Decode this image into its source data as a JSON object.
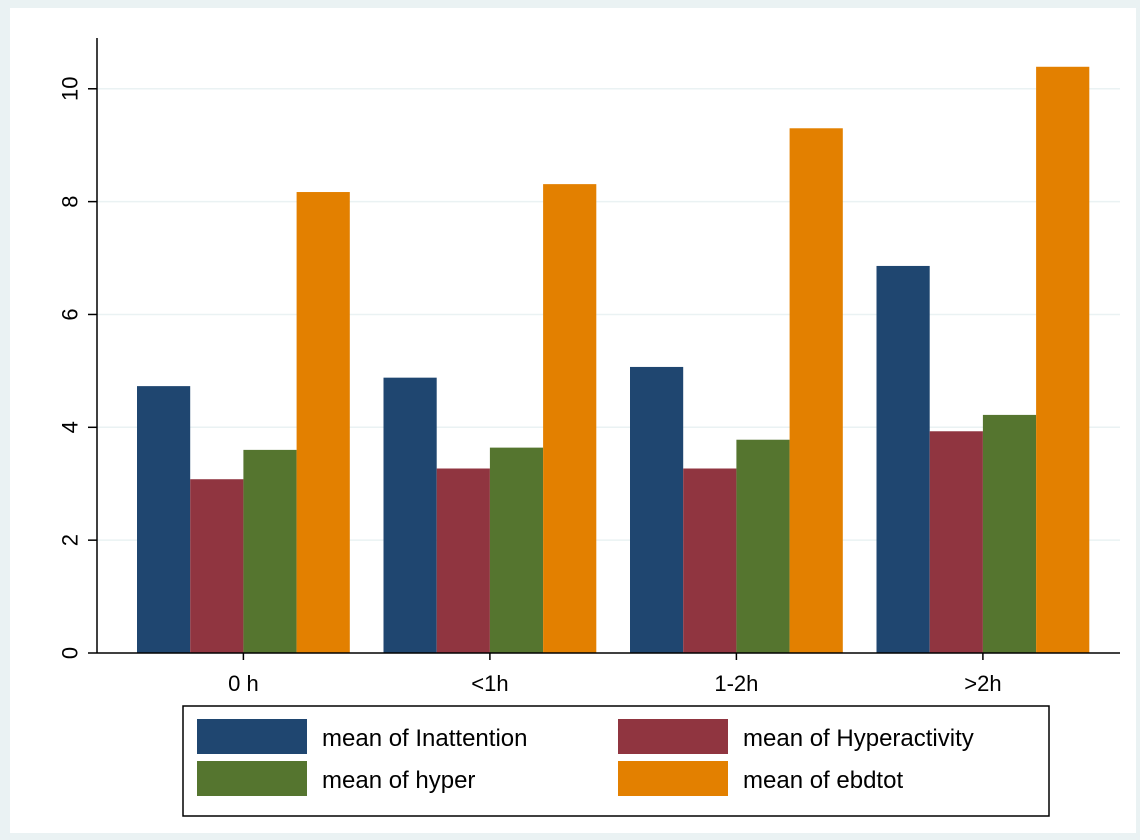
{
  "chart_data": {
    "type": "bar",
    "categories": [
      "0 h",
      "<1h",
      "1-2h",
      ">2h"
    ],
    "series": [
      {
        "name": "mean of Inattention",
        "color": "#1f4670",
        "values": [
          4.73,
          4.88,
          5.07,
          6.86
        ]
      },
      {
        "name": "mean of Hyperactivity",
        "color": "#903540",
        "values": [
          3.08,
          3.27,
          3.27,
          3.93
        ]
      },
      {
        "name": "mean of hyper",
        "color": "#55752f",
        "values": [
          3.6,
          3.64,
          3.78,
          4.22
        ]
      },
      {
        "name": "mean of ebdtot",
        "color": "#e38000",
        "values": [
          8.17,
          8.31,
          9.3,
          10.39
        ]
      }
    ],
    "xlabel": "",
    "ylabel": "",
    "ylim": [
      0,
      10.9
    ],
    "yticks": [
      "0",
      "2",
      "4",
      "6",
      "8",
      "10"
    ],
    "grid": true,
    "legend_position": "bottom",
    "colors": {
      "plot_background": "#ffffff",
      "outer_background": "#eaf2f3",
      "gridline": "#eaf2f3"
    }
  }
}
